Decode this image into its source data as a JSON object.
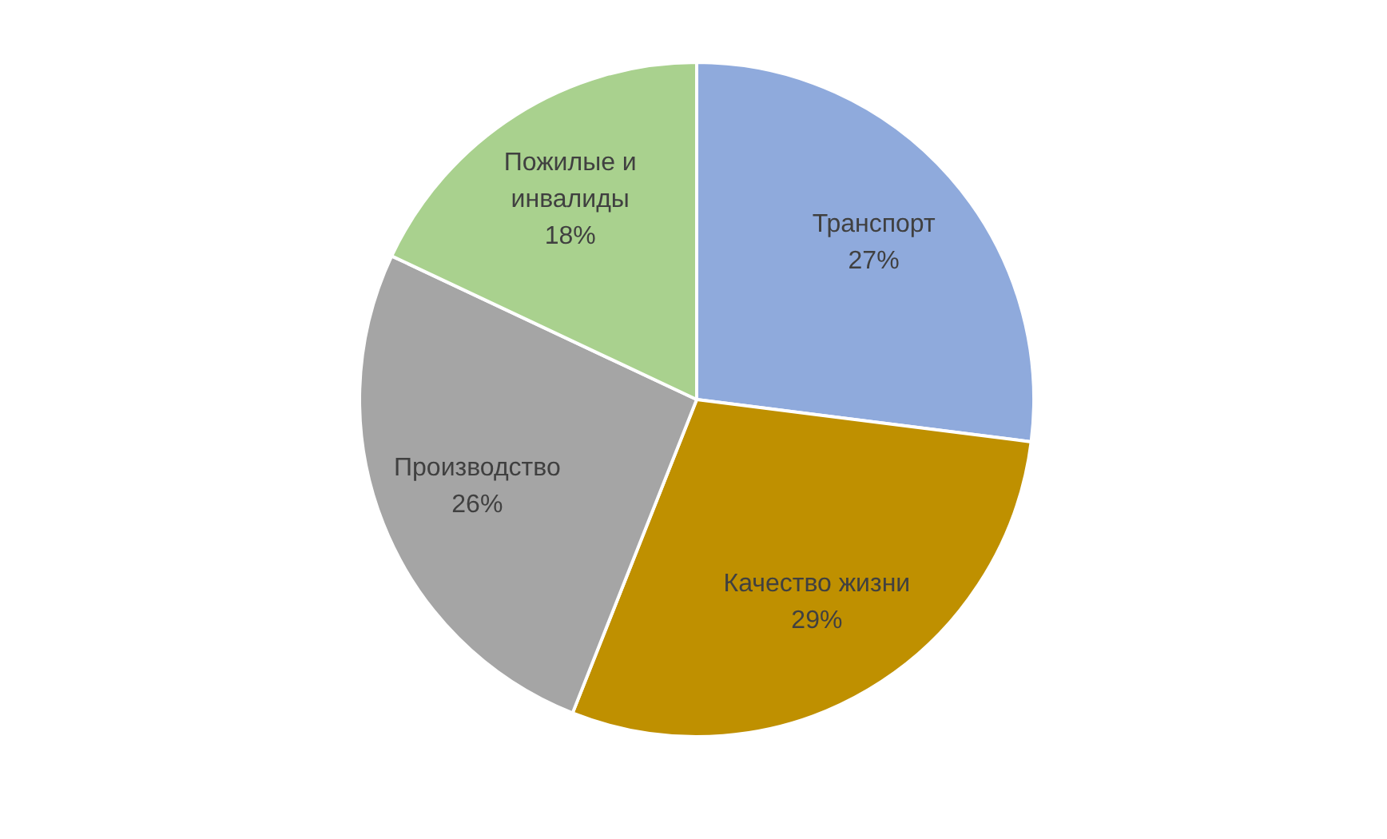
{
  "chart_data": {
    "type": "pie",
    "categories": [
      "Транспорт",
      "Качество жизни",
      "Производство",
      "Пожилые и инвалиды"
    ],
    "values": [
      27,
      29,
      26,
      18
    ],
    "colors": [
      "#8faadc",
      "#bf9000",
      "#a5a5a5",
      "#a9d18e"
    ],
    "value_labels": [
      "27%",
      "29%",
      "26%",
      "18%"
    ]
  }
}
